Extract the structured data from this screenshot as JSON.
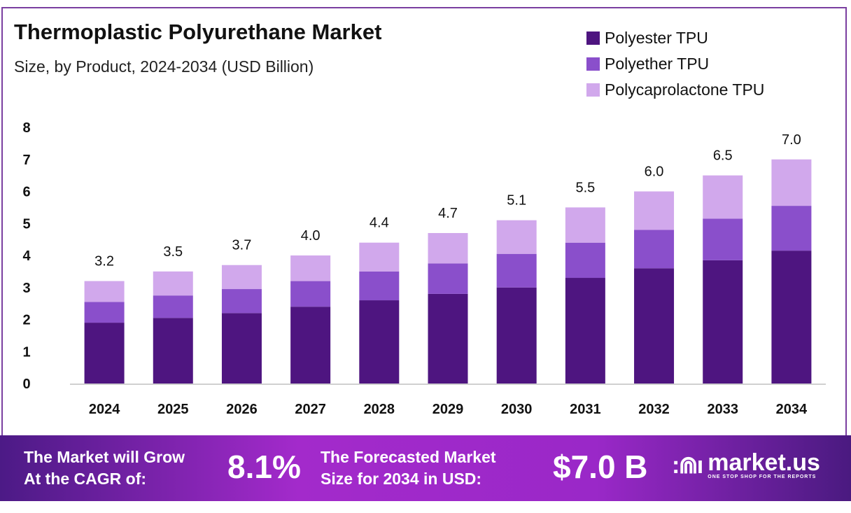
{
  "chart_data": {
    "type": "bar",
    "stacked": true,
    "title": "Thermoplastic Polyurethane Market",
    "subtitle": "Size, by Product, 2024-2034 (USD Billion)",
    "categories": [
      "2024",
      "2025",
      "2026",
      "2027",
      "2028",
      "2029",
      "2030",
      "2031",
      "2032",
      "2033",
      "2034"
    ],
    "series": [
      {
        "name": "Polyester TPU",
        "color": "#4e1580",
        "values": [
          1.9,
          2.05,
          2.2,
          2.4,
          2.6,
          2.8,
          3.0,
          3.3,
          3.6,
          3.85,
          4.15
        ]
      },
      {
        "name": "Polyether TPU",
        "color": "#8a4fcb",
        "values": [
          0.65,
          0.7,
          0.75,
          0.8,
          0.9,
          0.95,
          1.05,
          1.1,
          1.2,
          1.3,
          1.4
        ]
      },
      {
        "name": "Polycaprolactone TPU",
        "color": "#d1a8ec",
        "values": [
          0.65,
          0.75,
          0.75,
          0.8,
          0.9,
          0.95,
          1.05,
          1.1,
          1.2,
          1.35,
          1.45
        ]
      }
    ],
    "totals": [
      "3.2",
      "3.5",
      "3.7",
      "4.0",
      "4.4",
      "4.7",
      "5.1",
      "5.5",
      "6.0",
      "6.5",
      "7.0"
    ],
    "yticks": [
      "0",
      "1",
      "2",
      "3",
      "4",
      "5",
      "6",
      "7",
      "8"
    ],
    "ylim": [
      0,
      8
    ],
    "grid": false,
    "legend": "top-right"
  },
  "footer": {
    "cagr_label_1": "The Market will Grow",
    "cagr_label_2": "At the CAGR of:",
    "cagr_value": "8.1%",
    "forecast_label_1": "The Forecasted Market",
    "forecast_label_2": "Size for 2034 in USD:",
    "forecast_value": "$7.0 B",
    "brand": "market.us",
    "brand_tagline": "ONE STOP SHOP FOR THE REPORTS"
  }
}
